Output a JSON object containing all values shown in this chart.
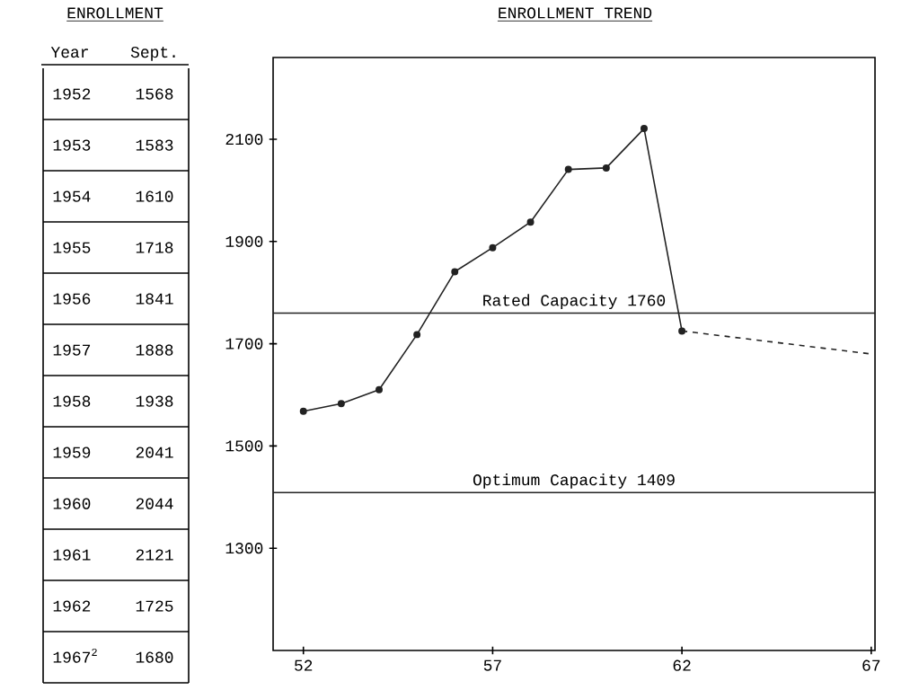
{
  "chart_data": {
    "type": "line",
    "title": "ENROLLMENT TREND",
    "x": [
      1952,
      1953,
      1954,
      1955,
      1956,
      1957,
      1958,
      1959,
      1960,
      1961,
      1962
    ],
    "series": [
      {
        "color": "#222222",
        "values": [
          1568,
          1583,
          1610,
          1718,
          1841,
          1888,
          1938,
          2041,
          2044,
          2121,
          1725
        ],
        "marker": "circle",
        "line_style": "solid"
      },
      {
        "color": "#222222",
        "x": [
          1962,
          1967
        ],
        "values": [
          1725,
          1680
        ],
        "marker": "none",
        "line_style": "dashed"
      }
    ],
    "xlim": [
      1951.2,
      1967.1
    ],
    "ylim": [
      1100,
      2260
    ],
    "xticks": [
      {
        "value": 1952,
        "label": "52"
      },
      {
        "value": 1957,
        "label": "57"
      },
      {
        "value": 1962,
        "label": "62"
      },
      {
        "value": 1967,
        "label": "67"
      }
    ],
    "yticks": [
      1300,
      1500,
      1700,
      1900,
      2100
    ],
    "ref_lines": [
      {
        "axis": "y",
        "value": 1760,
        "label": "Rated Capacity 1760",
        "color": "#222222"
      },
      {
        "axis": "y",
        "value": 1409,
        "label": "Optimum Capacity  1409",
        "color": "#222222"
      }
    ],
    "annotations": [
      "ENROLLMENT",
      "Year",
      "Sept.",
      "1952",
      "1568",
      "1953",
      "1583",
      "1954",
      "1610",
      "1955",
      "1718",
      "1956",
      "1841",
      "1957",
      "1888",
      "1958",
      "1938",
      "1959",
      "2041",
      "1960",
      "2044",
      "1961",
      "2121",
      "1962",
      "1725",
      "1967$^{2}$",
      "1680"
    ],
    "grid": false
  }
}
